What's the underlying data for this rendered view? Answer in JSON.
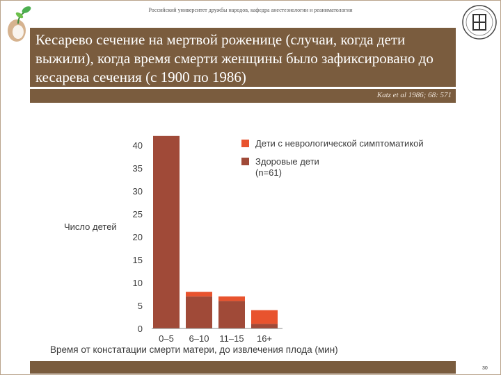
{
  "header": {
    "institution": "Российский университет дружбы народов, кафедра анестезиологии и реаниматологии"
  },
  "slide": {
    "title": "Кесарево сечение на мертвой роженице (случаи, когда дети выжили), когда время смерти женщины было зафиксировано до кесарева сечения (с 1900 по 1986)",
    "citation": "Katz et al 1986; 68: 571",
    "page_number": "30"
  },
  "colors": {
    "brown_bar": "#7a5c3e",
    "healthy": "#a04a38",
    "neuro": "#e8532e"
  },
  "chart_data": {
    "type": "bar",
    "stacked": true,
    "categories": [
      "0–5",
      "6–10",
      "11–15",
      "16+"
    ],
    "series": [
      {
        "name": "Здоровые дети\n(n=61)",
        "color": "#a04a38",
        "values": [
          42,
          7,
          6,
          1
        ]
      },
      {
        "name": "Дети с неврологической симптоматикой",
        "color": "#e8532e",
        "values": [
          0,
          1,
          1,
          3
        ]
      }
    ],
    "yticks": [
      0,
      5,
      10,
      15,
      20,
      25,
      30,
      35,
      40
    ],
    "ylim": [
      0,
      42
    ],
    "ylabel": "Число детей",
    "xlabel": "Время от констатации смерти матери, до извлечения плода (мин)",
    "legend": {
      "position": "top-right",
      "entries": [
        {
          "label": "Дети с неврологической симптоматикой",
          "color": "#e8532e"
        },
        {
          "label_line1": "Здоровые дети",
          "label_line2": "(n=61)",
          "color": "#a04a38"
        }
      ]
    }
  }
}
